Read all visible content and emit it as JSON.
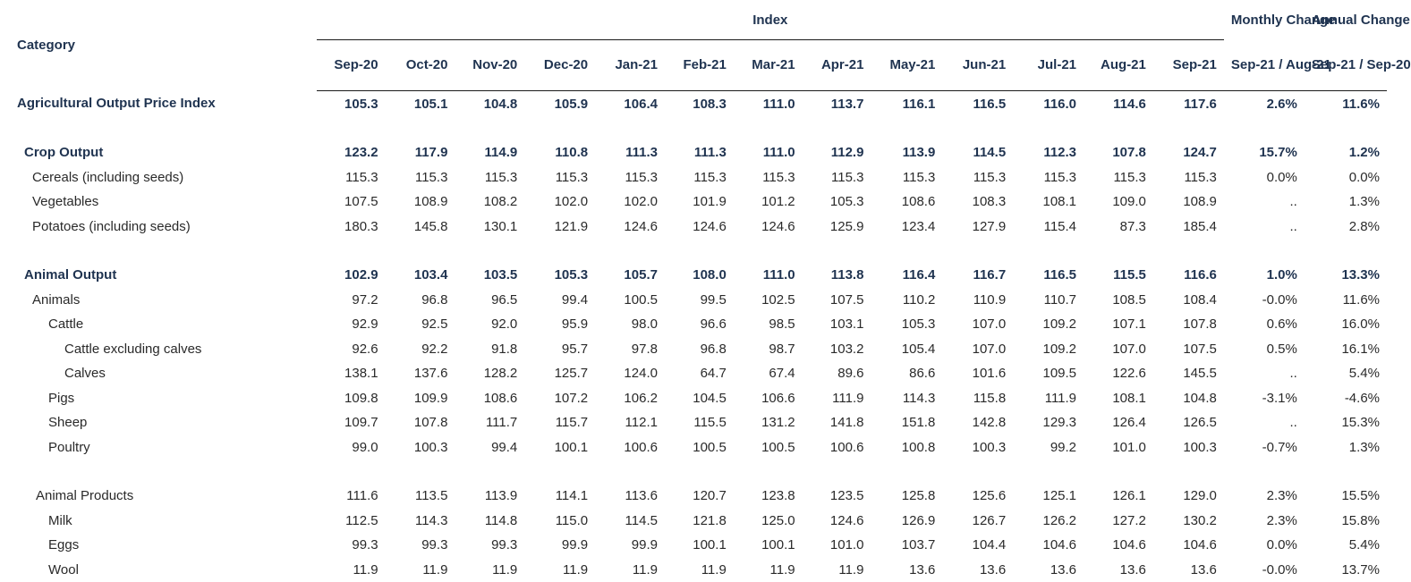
{
  "header": {
    "category_label": "Category",
    "index_label": "Index",
    "monthly_change_label": "Monthly Change",
    "annual_change_label": "Annual Change",
    "months": [
      "Sep-20",
      "Oct-20",
      "Nov-20",
      "Dec-20",
      "Jan-21",
      "Feb-21",
      "Mar-21",
      "Apr-21",
      "May-21",
      "Jun-21",
      "Jul-21",
      "Aug-21",
      "Sep-21"
    ],
    "monthly_period": "Sep-21 / Aug-21",
    "annual_period": "Sep-21 / Sep-20"
  },
  "rows": [
    {
      "label": "Agricultural Output Price Index",
      "values": [
        "105.3",
        "105.1",
        "104.8",
        "105.9",
        "106.4",
        "108.3",
        "111.0",
        "113.7",
        "116.1",
        "116.5",
        "116.0",
        "114.6",
        "117.6"
      ],
      "monthly": "2.6%",
      "annual": "11.6%"
    },
    {
      "label": "Crop Output",
      "values": [
        "123.2",
        "117.9",
        "114.9",
        "110.8",
        "111.3",
        "111.3",
        "111.0",
        "112.9",
        "113.9",
        "114.5",
        "112.3",
        "107.8",
        "124.7"
      ],
      "monthly": "15.7%",
      "annual": "1.2%"
    },
    {
      "label": "Cereals (including seeds)",
      "values": [
        "115.3",
        "115.3",
        "115.3",
        "115.3",
        "115.3",
        "115.3",
        "115.3",
        "115.3",
        "115.3",
        "115.3",
        "115.3",
        "115.3",
        "115.3"
      ],
      "monthly": "0.0%",
      "annual": "0.0%"
    },
    {
      "label": "Vegetables",
      "values": [
        "107.5",
        "108.9",
        "108.2",
        "102.0",
        "102.0",
        "101.9",
        "101.2",
        "105.3",
        "108.6",
        "108.3",
        "108.1",
        "109.0",
        "108.9"
      ],
      "monthly": "..",
      "annual": "1.3%"
    },
    {
      "label": "Potatoes (including seeds)",
      "values": [
        "180.3",
        "145.8",
        "130.1",
        "121.9",
        "124.6",
        "124.6",
        "124.6",
        "125.9",
        "123.4",
        "127.9",
        "115.4",
        "87.3",
        "185.4"
      ],
      "monthly": "..",
      "annual": "2.8%"
    },
    {
      "label": "Animal Output",
      "values": [
        "102.9",
        "103.4",
        "103.5",
        "105.3",
        "105.7",
        "108.0",
        "111.0",
        "113.8",
        "116.4",
        "116.7",
        "116.5",
        "115.5",
        "116.6"
      ],
      "monthly": "1.0%",
      "annual": "13.3%"
    },
    {
      "label": "Animals",
      "values": [
        "97.2",
        "96.8",
        "96.5",
        "99.4",
        "100.5",
        "99.5",
        "102.5",
        "107.5",
        "110.2",
        "110.9",
        "110.7",
        "108.5",
        "108.4"
      ],
      "monthly": "-0.0%",
      "annual": "11.6%"
    },
    {
      "label": "Cattle",
      "values": [
        "92.9",
        "92.5",
        "92.0",
        "95.9",
        "98.0",
        "96.6",
        "98.5",
        "103.1",
        "105.3",
        "107.0",
        "109.2",
        "107.1",
        "107.8"
      ],
      "monthly": "0.6%",
      "annual": "16.0%"
    },
    {
      "label": "Cattle excluding calves",
      "values": [
        "92.6",
        "92.2",
        "91.8",
        "95.7",
        "97.8",
        "96.8",
        "98.7",
        "103.2",
        "105.4",
        "107.0",
        "109.2",
        "107.0",
        "107.5"
      ],
      "monthly": "0.5%",
      "annual": "16.1%"
    },
    {
      "label": "Calves",
      "values": [
        "138.1",
        "137.6",
        "128.2",
        "125.7",
        "124.0",
        "64.7",
        "67.4",
        "89.6",
        "86.6",
        "101.6",
        "109.5",
        "122.6",
        "145.5"
      ],
      "monthly": "..",
      "annual": "5.4%"
    },
    {
      "label": "Pigs",
      "values": [
        "109.8",
        "109.9",
        "108.6",
        "107.2",
        "106.2",
        "104.5",
        "106.6",
        "111.9",
        "114.3",
        "115.8",
        "111.9",
        "108.1",
        "104.8"
      ],
      "monthly": "-3.1%",
      "annual": "-4.6%"
    },
    {
      "label": "Sheep",
      "values": [
        "109.7",
        "107.8",
        "111.7",
        "115.7",
        "112.1",
        "115.5",
        "131.2",
        "141.8",
        "151.8",
        "142.8",
        "129.3",
        "126.4",
        "126.5"
      ],
      "monthly": "..",
      "annual": "15.3%"
    },
    {
      "label": "Poultry",
      "values": [
        "99.0",
        "100.3",
        "99.4",
        "100.1",
        "100.6",
        "100.5",
        "100.5",
        "100.6",
        "100.8",
        "100.3",
        "99.2",
        "101.0",
        "100.3"
      ],
      "monthly": "-0.7%",
      "annual": "1.3%"
    },
    {
      "label": "Animal Products",
      "values": [
        "111.6",
        "113.5",
        "113.9",
        "114.1",
        "113.6",
        "120.7",
        "123.8",
        "123.5",
        "125.8",
        "125.6",
        "125.1",
        "126.1",
        "129.0"
      ],
      "monthly": "2.3%",
      "annual": "15.5%"
    },
    {
      "label": "Milk",
      "values": [
        "112.5",
        "114.3",
        "114.8",
        "115.0",
        "114.5",
        "121.8",
        "125.0",
        "124.6",
        "126.9",
        "126.7",
        "126.2",
        "127.2",
        "130.2"
      ],
      "monthly": "2.3%",
      "annual": "15.8%"
    },
    {
      "label": "Eggs",
      "values": [
        "99.3",
        "99.3",
        "99.3",
        "99.9",
        "99.9",
        "100.1",
        "100.1",
        "101.0",
        "103.7",
        "104.4",
        "104.6",
        "104.6",
        "104.6"
      ],
      "monthly": "0.0%",
      "annual": "5.4%"
    },
    {
      "label": "Wool",
      "values": [
        "11.9",
        "11.9",
        "11.9",
        "11.9",
        "11.9",
        "11.9",
        "11.9",
        "11.9",
        "13.6",
        "13.6",
        "13.6",
        "13.6",
        "13.6"
      ],
      "monthly": "-0.0%",
      "annual": "13.7%"
    }
  ]
}
